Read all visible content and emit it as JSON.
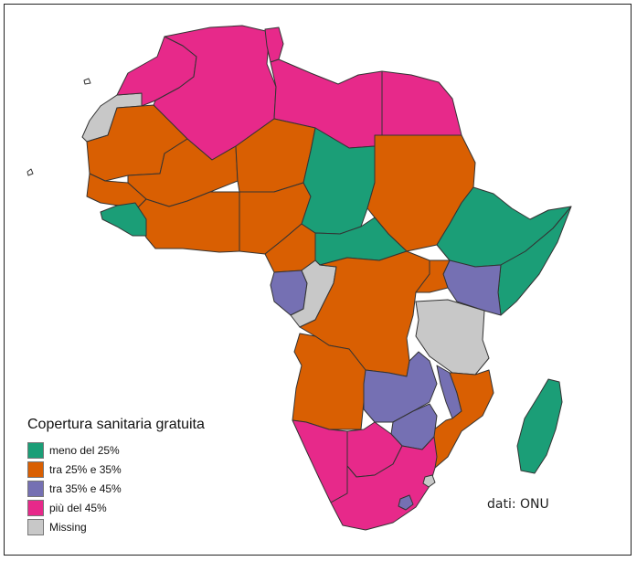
{
  "legend": {
    "title": "Copertura sanitaria gratuita",
    "items": [
      {
        "label": "meno del 25%",
        "color": "#1b9e77"
      },
      {
        "label": "tra 25% e 35%",
        "color": "#d95f02"
      },
      {
        "label": "tra 35% e 45%",
        "color": "#7570b3"
      },
      {
        "label": "più del 45%",
        "color": "#e7298a"
      },
      {
        "label": "Missing",
        "color": "#c8c8c8"
      }
    ]
  },
  "source": "dati: ONU",
  "colors": {
    "less_25": "#1b9e77",
    "range_25_35": "#d95f02",
    "range_35_45": "#7570b3",
    "more_45": "#e7298a",
    "missing": "#c8c8c8",
    "border": "#333333"
  }
}
